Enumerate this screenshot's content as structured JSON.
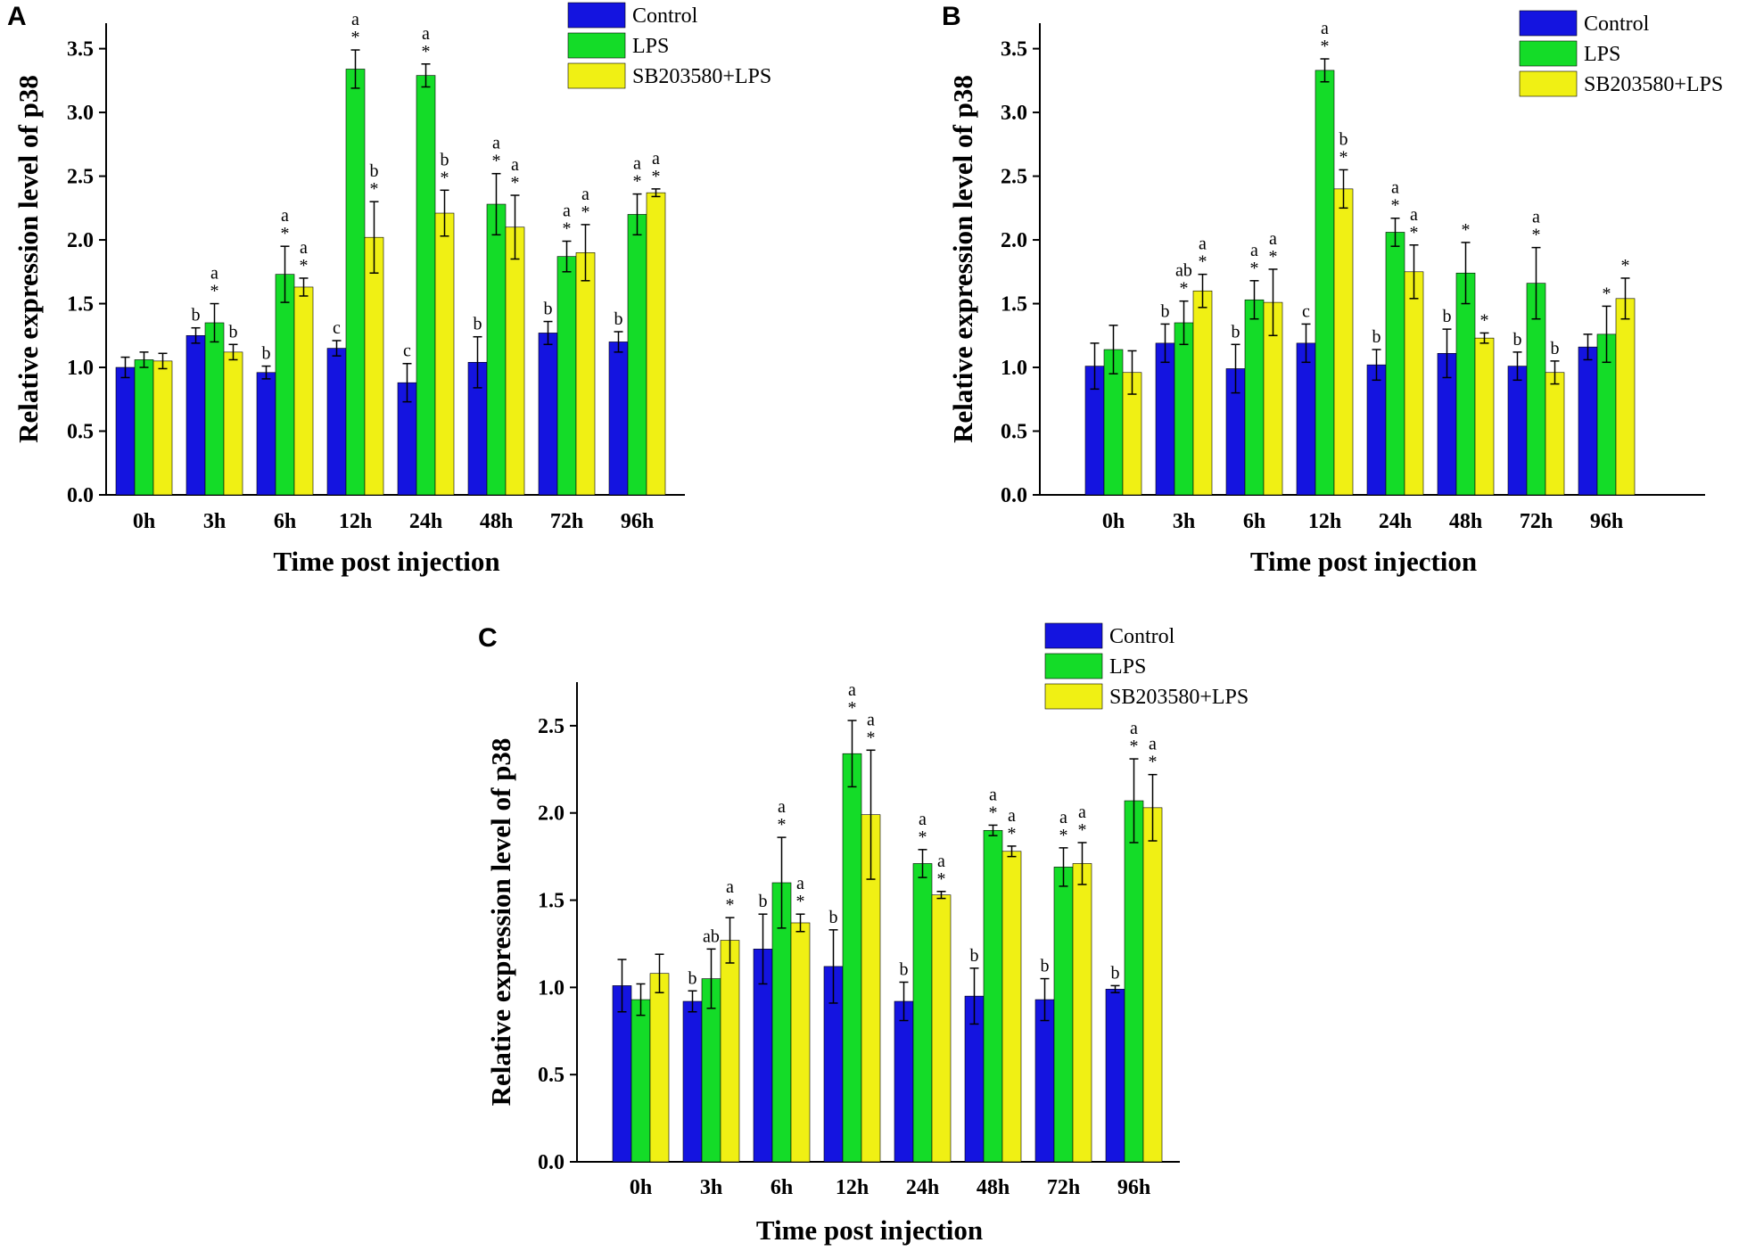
{
  "figure": {
    "width": 1950,
    "height": 1403
  },
  "colors": {
    "Control": "#1414e0",
    "LPS": "#14dc28",
    "SB203580+LPS": "#f0f014",
    "axis": "#000000",
    "error": "#000000"
  },
  "chart_data": [
    {
      "panel": "A",
      "type": "bar",
      "title": "",
      "xlabel": "Time post injection",
      "ylabel": "Relative expression level of p38",
      "ylim": [
        0,
        3.7
      ],
      "yticks": [
        "0.0",
        "0.5",
        "1.0",
        "1.5",
        "2.0",
        "2.5",
        "3.0",
        "3.5"
      ],
      "categories": [
        "0h",
        "3h",
        "6h",
        "12h",
        "24h",
        "48h",
        "72h",
        "96h"
      ],
      "legend": {
        "position": "top-right",
        "entries": [
          "Control",
          "LPS",
          "SB203580+LPS"
        ]
      },
      "series": [
        {
          "name": "Control",
          "values": [
            1.0,
            1.25,
            0.96,
            1.15,
            0.88,
            1.04,
            1.27,
            1.2
          ],
          "errors": [
            0.08,
            0.06,
            0.05,
            0.06,
            0.15,
            0.2,
            0.09,
            0.08
          ],
          "labels": [
            "",
            "b",
            "b",
            "c",
            "c",
            "b",
            "b",
            "b"
          ]
        },
        {
          "name": "LPS",
          "values": [
            1.06,
            1.35,
            1.73,
            3.34,
            3.29,
            2.28,
            1.87,
            2.2
          ],
          "errors": [
            0.06,
            0.15,
            0.22,
            0.15,
            0.09,
            0.24,
            0.12,
            0.16
          ],
          "labels": [
            "",
            "a*",
            "a*",
            "a*",
            "a*",
            "a*",
            "a*",
            "a*"
          ]
        },
        {
          "name": "SB203580+LPS",
          "values": [
            1.05,
            1.12,
            1.63,
            2.02,
            2.21,
            2.1,
            1.9,
            2.37
          ],
          "errors": [
            0.06,
            0.06,
            0.07,
            0.28,
            0.18,
            0.25,
            0.22,
            0.03
          ],
          "labels": [
            "",
            "b",
            "a*",
            "b*",
            "b*",
            "a*",
            "a*",
            "a*"
          ]
        }
      ]
    },
    {
      "panel": "B",
      "type": "bar",
      "title": "",
      "xlabel": "Time post injection",
      "ylabel": "Relative expression level of p38",
      "ylim": [
        0,
        3.7
      ],
      "yticks": [
        "0.0",
        "0.5",
        "1.0",
        "1.5",
        "2.0",
        "2.5",
        "3.0",
        "3.5"
      ],
      "categories": [
        "0h",
        "3h",
        "6h",
        "12h",
        "24h",
        "48h",
        "72h",
        "96h"
      ],
      "legend": {
        "position": "top-right",
        "entries": [
          "Control",
          "LPS",
          "SB203580+LPS"
        ]
      },
      "series": [
        {
          "name": "Control",
          "values": [
            1.01,
            1.19,
            0.99,
            1.19,
            1.02,
            1.11,
            1.01,
            1.16
          ],
          "errors": [
            0.18,
            0.15,
            0.19,
            0.15,
            0.12,
            0.19,
            0.11,
            0.1
          ],
          "labels": [
            "",
            "b",
            "b",
            "c",
            "b",
            "b",
            "b",
            ""
          ]
        },
        {
          "name": "LPS",
          "values": [
            1.14,
            1.35,
            1.53,
            3.33,
            2.06,
            1.74,
            1.66,
            1.26
          ],
          "errors": [
            0.19,
            0.17,
            0.15,
            0.09,
            0.11,
            0.24,
            0.28,
            0.22
          ],
          "labels": [
            "",
            "ab*",
            "a*",
            "a*",
            "a*",
            "*",
            "a*",
            "*"
          ]
        },
        {
          "name": "SB203580+LPS",
          "values": [
            0.96,
            1.6,
            1.51,
            2.4,
            1.75,
            1.23,
            0.96,
            1.54
          ],
          "errors": [
            0.17,
            0.13,
            0.26,
            0.15,
            0.21,
            0.04,
            0.09,
            0.16
          ],
          "labels": [
            "",
            "a*",
            "a*",
            "b*",
            "a*",
            "*",
            "b",
            "*"
          ]
        }
      ]
    },
    {
      "panel": "C",
      "type": "bar",
      "title": "",
      "xlabel": "Time post injection",
      "ylabel": "Relative expression level of p38",
      "ylim": [
        0,
        2.75
      ],
      "yticks": [
        "0.0",
        "0.5",
        "1.0",
        "1.5",
        "2.0",
        "2.5"
      ],
      "categories": [
        "0h",
        "3h",
        "6h",
        "12h",
        "24h",
        "48h",
        "72h",
        "96h"
      ],
      "legend": {
        "position": "top-right",
        "entries": [
          "Control",
          "LPS",
          "SB203580+LPS"
        ]
      },
      "series": [
        {
          "name": "Control",
          "values": [
            1.01,
            0.92,
            1.22,
            1.12,
            0.92,
            0.95,
            0.93,
            0.99
          ],
          "errors": [
            0.15,
            0.06,
            0.2,
            0.21,
            0.11,
            0.16,
            0.12,
            0.02
          ],
          "labels": [
            "",
            "b",
            "b",
            "b",
            "b",
            "b",
            "b",
            "b"
          ]
        },
        {
          "name": "LPS",
          "values": [
            0.93,
            1.05,
            1.6,
            2.34,
            1.71,
            1.9,
            1.69,
            2.07
          ],
          "errors": [
            0.09,
            0.17,
            0.26,
            0.19,
            0.08,
            0.03,
            0.11,
            0.24
          ],
          "labels": [
            "",
            "ab",
            "a*",
            "a*",
            "a*",
            "a*",
            "a*",
            "a*"
          ]
        },
        {
          "name": "SB203580+LPS",
          "values": [
            1.08,
            1.27,
            1.37,
            1.99,
            1.53,
            1.78,
            1.71,
            2.03
          ],
          "errors": [
            0.11,
            0.13,
            0.05,
            0.37,
            0.02,
            0.03,
            0.12,
            0.19
          ],
          "labels": [
            "",
            "a*",
            "a*",
            "a*",
            "a*",
            "a*",
            "a*",
            "a*"
          ]
        }
      ]
    }
  ]
}
